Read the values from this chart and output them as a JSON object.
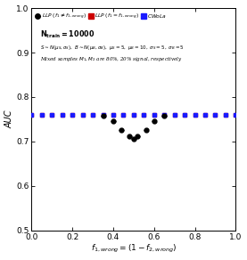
{
  "xlabel": "$f_{1,wrong} = (1 - f_{2,wrong})$",
  "ylabel": "AUC",
  "xlim": [
    0,
    1
  ],
  "ylim": [
    0.5,
    1.0
  ],
  "yticks": [
    0.5,
    0.6,
    0.7,
    0.8,
    0.9,
    1.0
  ],
  "xticks": [
    0.0,
    0.2,
    0.4,
    0.6,
    0.8,
    1.0
  ],
  "cwola_x": [
    0.0,
    0.05,
    0.1,
    0.15,
    0.2,
    0.25,
    0.3,
    0.35,
    0.4,
    0.45,
    0.5,
    0.55,
    0.6,
    0.65,
    0.7,
    0.75,
    0.8,
    0.85,
    0.9,
    0.95,
    1.0
  ],
  "cwola_y": [
    0.76,
    0.76,
    0.76,
    0.76,
    0.76,
    0.76,
    0.76,
    0.76,
    0.76,
    0.76,
    0.76,
    0.76,
    0.76,
    0.76,
    0.76,
    0.76,
    0.76,
    0.76,
    0.76,
    0.76,
    0.76
  ],
  "cwola_yerr": [
    0.004,
    0.004,
    0.004,
    0.004,
    0.004,
    0.004,
    0.004,
    0.004,
    0.004,
    0.004,
    0.004,
    0.004,
    0.004,
    0.004,
    0.004,
    0.004,
    0.004,
    0.004,
    0.004,
    0.004,
    0.004
  ],
  "llp_correct_x": [
    0.0,
    0.05,
    0.1,
    0.15,
    0.2,
    0.25,
    0.3,
    0.35,
    0.4,
    0.45,
    0.5,
    0.55,
    0.6,
    0.65,
    0.7,
    0.75,
    0.8,
    0.85,
    0.9,
    0.95,
    1.0
  ],
  "llp_correct_y": [
    0.76,
    0.76,
    0.76,
    0.76,
    0.76,
    0.76,
    0.76,
    0.76,
    0.76,
    0.76,
    0.76,
    0.76,
    0.76,
    0.76,
    0.76,
    0.76,
    0.76,
    0.76,
    0.76,
    0.76,
    0.76
  ],
  "llp_correct_yerr": [
    0.004,
    0.004,
    0.004,
    0.004,
    0.004,
    0.004,
    0.004,
    0.004,
    0.004,
    0.004,
    0.004,
    0.004,
    0.004,
    0.004,
    0.004,
    0.004,
    0.004,
    0.004,
    0.004,
    0.004,
    0.004
  ],
  "llp_wrong_x": [
    0.35,
    0.4,
    0.44,
    0.48,
    0.5,
    0.52,
    0.56,
    0.6,
    0.65
  ],
  "llp_wrong_y": [
    0.757,
    0.745,
    0.725,
    0.712,
    0.706,
    0.712,
    0.725,
    0.745,
    0.757
  ],
  "llp_wrong_yerr": [
    0.004,
    0.004,
    0.004,
    0.004,
    0.004,
    0.004,
    0.004,
    0.004,
    0.004
  ],
  "llp_wrong_xerr": [
    0.012,
    0.012,
    0.012,
    0.012,
    0.012,
    0.012,
    0.012,
    0.012,
    0.012
  ],
  "color_black": "#000000",
  "color_red": "#cc0000",
  "color_blue": "#1a1aff",
  "bg_color": "#ffffff"
}
